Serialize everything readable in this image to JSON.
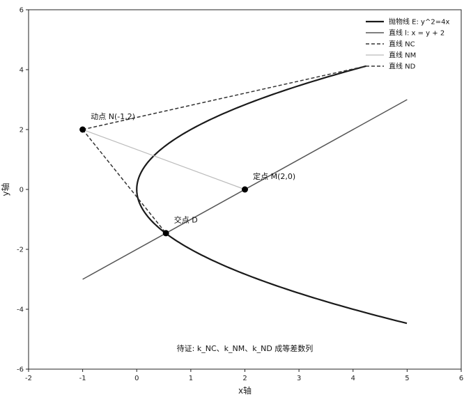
{
  "chart_data": {
    "type": "line",
    "xlabel": "x轴",
    "ylabel": "y轴",
    "xlim": [
      -2,
      6
    ],
    "ylim": [
      -6,
      6
    ],
    "xticks": [
      -2,
      -1,
      0,
      1,
      2,
      3,
      4,
      5,
      6
    ],
    "yticks": [
      -6,
      -4,
      -2,
      0,
      2,
      4,
      6
    ],
    "grid": false,
    "legend_position": "top-right",
    "series": [
      {
        "name": "抛物线 E: y^2=4x",
        "kind": "parabola",
        "y_range": [
          -4.47,
          4.12
        ],
        "color": "#1a1a1a",
        "style": "solid",
        "weight": "thick"
      },
      {
        "name": "直线 l: x = y + 2",
        "kind": "line",
        "x": [
          -1,
          5
        ],
        "y": [
          -3,
          3
        ],
        "color": "#555555",
        "style": "solid",
        "weight": "medium"
      },
      {
        "name": "直线 NC",
        "kind": "segment",
        "x": [
          -1,
          4.24
        ],
        "y": [
          2,
          4.12
        ],
        "color": "#333333",
        "style": "dashed",
        "weight": "medium"
      },
      {
        "name": "直线 NM",
        "kind": "segment",
        "x": [
          -1,
          2
        ],
        "y": [
          2,
          0
        ],
        "color": "#bbbbbb",
        "style": "solid",
        "weight": "thin"
      },
      {
        "name": "直线 ND",
        "kind": "segment",
        "x": [
          -1,
          0.54
        ],
        "y": [
          2,
          -1.46
        ],
        "color": "#333333",
        "style": "dashed",
        "weight": "medium"
      }
    ],
    "points": [
      {
        "label": "动点 N(-1,2)",
        "x": -1,
        "y": 2,
        "label_dx": 0.15,
        "label_dy": 0.35
      },
      {
        "label": "定点 M(2,0)",
        "x": 2,
        "y": 0,
        "label_dx": 0.15,
        "label_dy": 0.35
      },
      {
        "label": "交点 D",
        "x": 0.54,
        "y": -1.46,
        "label_dx": 0.15,
        "label_dy": 0.35
      }
    ],
    "annotation": {
      "text": "待证: k_NC、k_NM、k_ND 成等差数列",
      "x": 2,
      "y": -5.4
    }
  }
}
